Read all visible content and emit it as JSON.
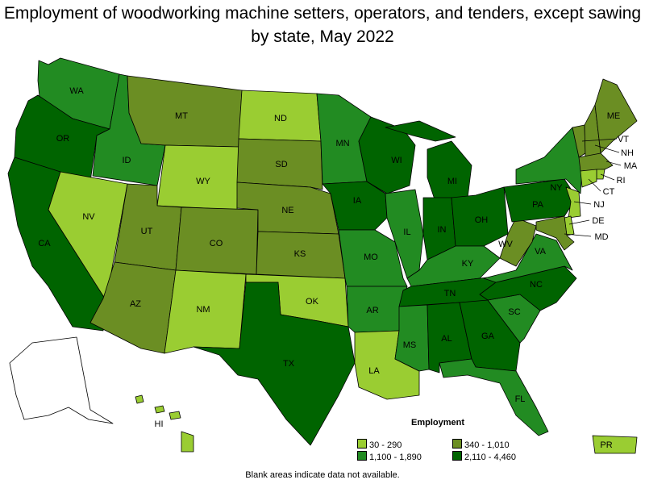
{
  "title": "Employment of woodworking machine setters, operators, and tenders, except sawing by state, May 2022",
  "colors": {
    "bin1": "#9ACD32",
    "bin2": "#6B8E23",
    "bin3": "#228B22",
    "bin4": "#006400",
    "nodata": "#FFFFFF"
  },
  "legend": {
    "title": "Employment",
    "items": [
      {
        "label": "30 - 290",
        "bin": "bin1"
      },
      {
        "label": "340 - 1,010",
        "bin": "bin2"
      },
      {
        "label": "1,100 - 1,890",
        "bin": "bin3"
      },
      {
        "label": "2,110 - 4,460",
        "bin": "bin4"
      }
    ]
  },
  "note": "Blank areas indicate data not available.",
  "states": {
    "WA": "bin3",
    "OR": "bin4",
    "CA": "bin4",
    "ID": "bin3",
    "NV": "bin1",
    "MT": "bin2",
    "WY": "bin1",
    "UT": "bin2",
    "AZ": "bin2",
    "CO": "bin2",
    "NM": "bin1",
    "ND": "bin1",
    "SD": "bin2",
    "NE": "bin2",
    "KS": "bin2",
    "OK": "bin1",
    "TX": "bin4",
    "MN": "bin3",
    "IA": "bin4",
    "MO": "bin3",
    "AR": "bin3",
    "LA": "bin1",
    "WI": "bin4",
    "IL": "bin3",
    "MI": "bin4",
    "IN": "bin4",
    "OH": "bin4",
    "KY": "bin3",
    "TN": "bin4",
    "MS": "bin3",
    "AL": "bin4",
    "GA": "bin4",
    "FL": "bin3",
    "SC": "bin3",
    "NC": "bin4",
    "VA": "bin3",
    "WV": "bin2",
    "PA": "bin4",
    "NY": "bin3",
    "VT": "bin2",
    "NH": "bin2",
    "ME": "bin2",
    "MA": "bin2",
    "RI": "bin1",
    "CT": "bin1",
    "NJ": "bin1",
    "DE": "bin1",
    "MD": "bin2",
    "HI": "bin1",
    "AK": "nodata",
    "PR": "bin1"
  },
  "labels": {
    "WA": "WA",
    "OR": "OR",
    "CA": "CA",
    "ID": "ID",
    "NV": "NV",
    "MT": "MT",
    "WY": "WY",
    "UT": "UT",
    "AZ": "AZ",
    "CO": "CO",
    "NM": "NM",
    "ND": "ND",
    "SD": "SD",
    "NE": "NE",
    "KS": "KS",
    "OK": "OK",
    "TX": "TX",
    "MN": "MN",
    "IA": "IA",
    "MO": "MO",
    "AR": "AR",
    "LA": "LA",
    "WI": "WI",
    "IL": "IL",
    "MI": "MI",
    "IN": "IN",
    "OH": "OH",
    "KY": "KY",
    "TN": "TN",
    "MS": "MS",
    "AL": "AL",
    "GA": "GA",
    "FL": "FL",
    "SC": "SC",
    "NC": "NC",
    "VA": "VA",
    "WV": "WV",
    "PA": "PA",
    "NY": "NY",
    "VT": "VT",
    "NH": "NH",
    "ME": "ME",
    "MA": "MA",
    "RI": "RI",
    "CT": "CT",
    "NJ": "NJ",
    "DE": "DE",
    "MD": "MD",
    "HI": "HI",
    "PR": "PR"
  }
}
